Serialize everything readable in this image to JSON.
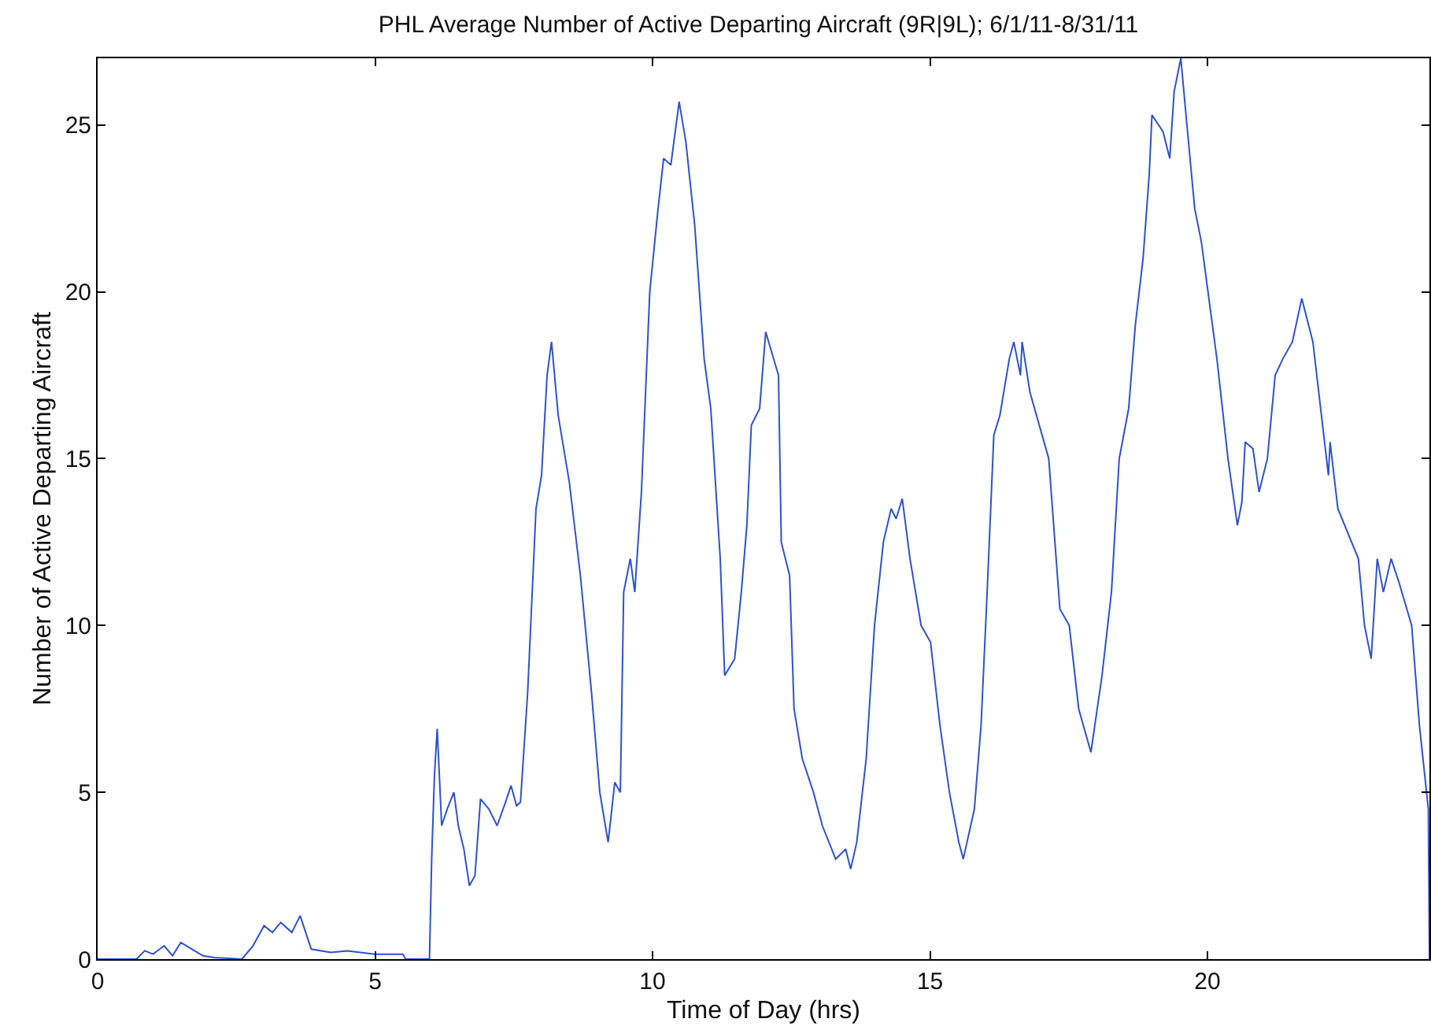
{
  "chart_data": {
    "type": "line",
    "title": "PHL Average Number of Active Departing Aircraft (9R|9L); 6/1/11-8/31/11",
    "xlabel": "Time of Day (hrs)",
    "ylabel": "Number of Active Departing Aircraft",
    "x": [
      0,
      0.7,
      0.85,
      1.0,
      1.2,
      1.35,
      1.5,
      1.7,
      1.9,
      2.1,
      2.6,
      2.8,
      3.0,
      3.15,
      3.3,
      3.5,
      3.65,
      3.85,
      4.2,
      4.5,
      5.0,
      5.5,
      5.55,
      5.98,
      6.02,
      6.07,
      6.12,
      6.2,
      6.3,
      6.42,
      6.5,
      6.6,
      6.7,
      6.8,
      6.9,
      7.05,
      7.2,
      7.35,
      7.45,
      7.55,
      7.62,
      7.75,
      7.9,
      8.0,
      8.1,
      8.18,
      8.3,
      8.5,
      8.7,
      8.9,
      9.05,
      9.2,
      9.32,
      9.42,
      9.48,
      9.6,
      9.68,
      9.8,
      9.95,
      10.1,
      10.2,
      10.33,
      10.48,
      10.6,
      10.76,
      10.93,
      11.05,
      11.22,
      11.3,
      11.48,
      11.6,
      11.7,
      11.78,
      11.93,
      12.04,
      12.18,
      12.27,
      12.32,
      12.47,
      12.55,
      12.7,
      12.9,
      13.06,
      13.3,
      13.48,
      13.57,
      13.68,
      13.85,
      14.0,
      14.16,
      14.3,
      14.39,
      14.5,
      14.64,
      14.84,
      15.01,
      15.18,
      15.35,
      15.52,
      15.6,
      15.8,
      15.92,
      16.03,
      16.15,
      16.26,
      16.43,
      16.51,
      16.63,
      16.66,
      16.8,
      17.14,
      17.34,
      17.51,
      17.68,
      17.9,
      18.1,
      18.27,
      18.41,
      18.58,
      18.7,
      18.84,
      18.95,
      19.0,
      19.2,
      19.32,
      19.4,
      19.52,
      19.63,
      19.77,
      19.89,
      20.17,
      20.37,
      20.54,
      20.62,
      20.68,
      20.82,
      20.93,
      21.08,
      21.22,
      21.36,
      21.53,
      21.7,
      21.9,
      22.04,
      22.18,
      22.21,
      22.35,
      22.72,
      22.83,
      22.95,
      23.06,
      23.17,
      23.31,
      23.45,
      23.68,
      23.82,
      23.98,
      24
    ],
    "series": [
      {
        "color": "#2f52c8",
        "values": [
          0,
          0,
          0.25,
          0.15,
          0.4,
          0.1,
          0.5,
          0.3,
          0.1,
          0.05,
          0,
          0.4,
          1.0,
          0.8,
          1.1,
          0.8,
          1.3,
          0.3,
          0.2,
          0.25,
          0.15,
          0.15,
          0,
          0,
          3,
          5.5,
          6.9,
          4,
          4.5,
          5,
          4,
          3.3,
          2.2,
          2.5,
          4.8,
          4.5,
          4.0,
          4.7,
          5.2,
          4.6,
          4.7,
          8,
          13.5,
          14.5,
          17.5,
          18.5,
          16.3,
          14.3,
          11.5,
          8,
          5,
          3.5,
          5.3,
          5,
          11,
          12,
          11,
          14,
          20,
          22.5,
          24,
          23.8,
          25.7,
          24.5,
          22,
          18,
          16.5,
          12,
          8.5,
          9,
          11,
          13,
          16,
          16.5,
          18.8,
          18,
          17.5,
          12.5,
          11.5,
          7.5,
          6,
          5,
          4,
          3,
          3.3,
          2.7,
          3.5,
          6,
          10,
          12.5,
          13.5,
          13.2,
          13.8,
          12,
          10,
          9.5,
          7,
          5,
          3.5,
          3,
          4.5,
          7,
          11,
          15.7,
          16.3,
          18,
          18.5,
          17.5,
          18.5,
          17,
          15,
          10.5,
          10,
          7.5,
          6.2,
          8.5,
          11,
          15,
          16.5,
          19,
          21,
          23.5,
          25.3,
          24.8,
          24,
          26,
          27,
          25,
          22.5,
          21.5,
          18,
          15,
          13,
          13.7,
          15.5,
          15.3,
          14,
          15,
          17.5,
          18,
          18.5,
          19.8,
          18.5,
          16.5,
          14.5,
          15.5,
          13.5,
          12,
          10,
          9,
          12,
          11,
          12,
          11.3,
          10,
          7,
          4.5,
          0
        ]
      }
    ],
    "xlim": [
      0,
      24
    ],
    "ylim": [
      0,
      27
    ],
    "xticks": [
      0,
      5,
      10,
      15,
      20
    ],
    "yticks": [
      0,
      5,
      10,
      15,
      20,
      25
    ],
    "grid": false,
    "marker": "none",
    "line_style": "solid"
  }
}
